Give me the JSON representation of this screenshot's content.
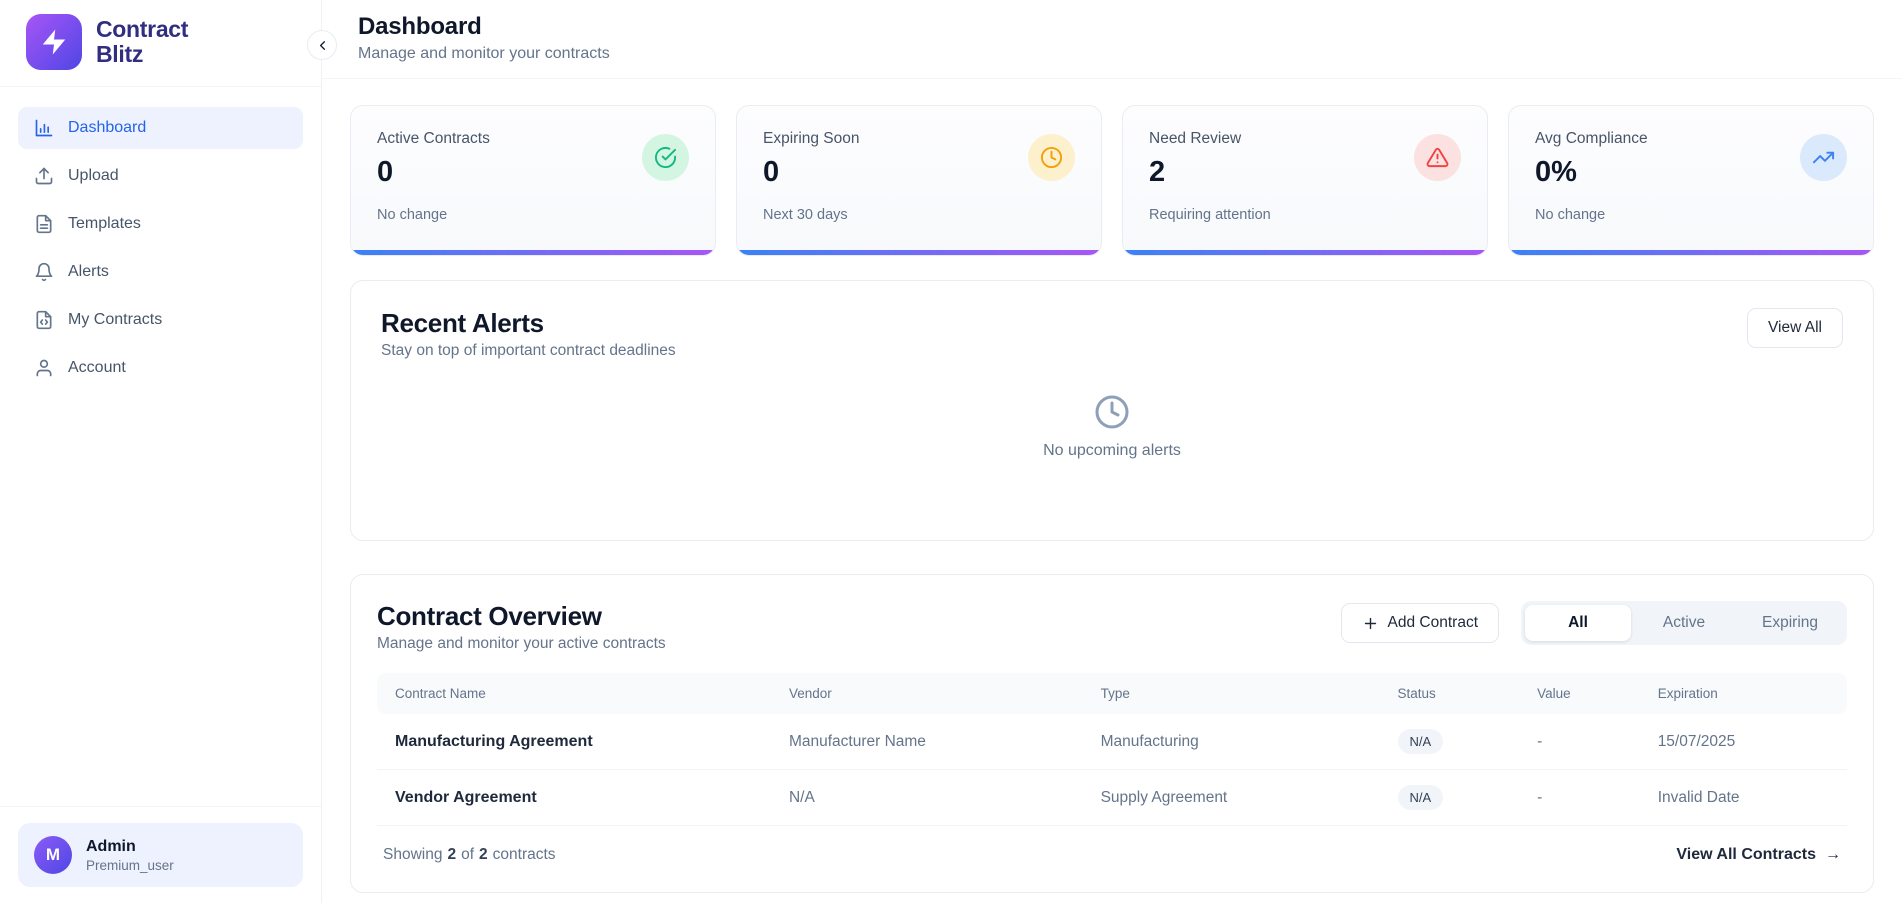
{
  "brand": {
    "name_line1": "Contract",
    "name_line2": "Blitz"
  },
  "sidebar": {
    "items": [
      {
        "label": "Dashboard",
        "icon": "bar-chart",
        "active": true
      },
      {
        "label": "Upload",
        "icon": "upload",
        "active": false
      },
      {
        "label": "Templates",
        "icon": "file-text",
        "active": false
      },
      {
        "label": "Alerts",
        "icon": "bell",
        "active": false
      },
      {
        "label": "My Contracts",
        "icon": "file-code",
        "active": false
      },
      {
        "label": "Account",
        "icon": "user",
        "active": false
      }
    ],
    "user": {
      "initial": "M",
      "name": "Admin",
      "role": "Premium_user"
    }
  },
  "header": {
    "title": "Dashboard",
    "subtitle": "Manage and monitor your contracts"
  },
  "stats": [
    {
      "label": "Active Contracts",
      "value": "0",
      "note": "No change",
      "icon": "check-circle",
      "icon_color": "#10b981",
      "icon_bg": "#d5f5e3"
    },
    {
      "label": "Expiring Soon",
      "value": "0",
      "note": "Next 30 days",
      "icon": "clock",
      "icon_color": "#f59e0b",
      "icon_bg": "#fdf0cd"
    },
    {
      "label": "Need Review",
      "value": "2",
      "note": "Requiring attention",
      "icon": "alert-triangle",
      "icon_color": "#ef4444",
      "icon_bg": "#fce1e1"
    },
    {
      "label": "Avg Compliance",
      "value": "0%",
      "note": "No change",
      "icon": "trending-up",
      "icon_color": "#3b82f6",
      "icon_bg": "#dbe9fc"
    }
  ],
  "alerts": {
    "title": "Recent Alerts",
    "subtitle": "Stay on top of important contract deadlines",
    "view_all_label": "View All",
    "empty_text": "No upcoming alerts"
  },
  "contracts": {
    "title": "Contract Overview",
    "subtitle": "Manage and monitor your active contracts",
    "add_button_label": "Add Contract",
    "tabs": [
      {
        "label": "All",
        "active": true
      },
      {
        "label": "Active",
        "active": false
      },
      {
        "label": "Expiring",
        "active": false
      }
    ],
    "columns": [
      "Contract Name",
      "Vendor",
      "Type",
      "Status",
      "Value",
      "Expiration"
    ],
    "rows": [
      {
        "name": "Manufacturing Agreement",
        "vendor": "Manufacturer Name",
        "type": "Manufacturing",
        "status": "N/A",
        "value": "-",
        "expiration": "15/07/2025"
      },
      {
        "name": "Vendor Agreement",
        "vendor": "N/A",
        "type": "Supply Agreement",
        "status": "N/A",
        "value": "-",
        "expiration": "Invalid Date"
      }
    ],
    "footer": {
      "showing_prefix": "Showing",
      "shown_count": "2",
      "of_word": "of",
      "total_count": "2",
      "suffix": "contracts",
      "view_all_label": "View All Contracts",
      "arrow": "→"
    }
  },
  "colors": {
    "logo_from": "#a855f7",
    "logo_to": "#4f46e5",
    "avatar_from": "#8b5cf6",
    "avatar_to": "#4f46e5",
    "bar_from": "#3b82f6",
    "bar_to": "#a855f7",
    "active_nav": "#2563eb"
  }
}
